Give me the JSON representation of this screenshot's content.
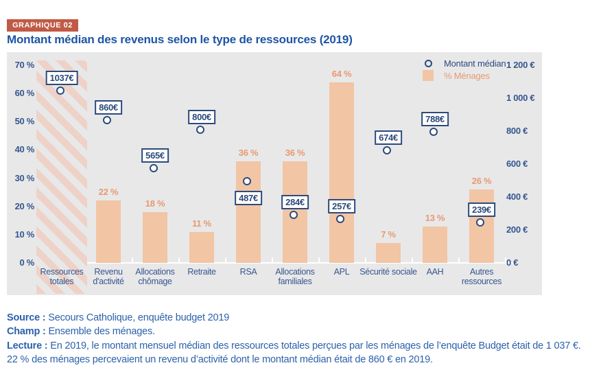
{
  "badge": "GRAPHIQUE 02",
  "title": "Montant médian des revenus selon le type de ressources (2019)",
  "legend": {
    "median_label": "Montant médian",
    "pct_label": "% Ménages"
  },
  "colors": {
    "accent_red": "#c05a45",
    "title_blue": "#1d55a4",
    "navy": "#2c4a7c",
    "orange_text": "#e8996e",
    "bar_fill": "#f2c5a4",
    "hatch_pink": "#eed2c7",
    "panel_gray": "#e8e8e9"
  },
  "chart_data": {
    "type": "bar",
    "title": "Montant médian des revenus selon le type de ressources (2019)",
    "grid": false,
    "legend_position": "top-right",
    "y_axis_left": {
      "unit": "%",
      "range": [
        0,
        70
      ],
      "ticks": [
        {
          "label": "70 %",
          "value": 70
        },
        {
          "label": "60 %",
          "value": 60
        },
        {
          "label": "50 %",
          "value": 50
        },
        {
          "label": "40 %",
          "value": 40
        },
        {
          "label": "30 %",
          "value": 30
        },
        {
          "label": "20 %",
          "value": 20
        },
        {
          "label": "10 %",
          "value": 10
        },
        {
          "label": "0 %",
          "value": 0
        }
      ]
    },
    "y_axis_right": {
      "unit": "€",
      "range": [
        0,
        1200
      ],
      "ticks": [
        {
          "label": "1 200 €",
          "value": 1200
        },
        {
          "label": "1 000 €",
          "value": 1000
        },
        {
          "label": "800 €",
          "value": 800
        },
        {
          "label": "600 €",
          "value": 600
        },
        {
          "label": "400 €",
          "value": 400
        },
        {
          "label": "200 €",
          "value": 200
        },
        {
          "label": "0 €",
          "value": 0
        }
      ]
    },
    "series": [
      {
        "name": "% Ménages",
        "type": "bar",
        "axis": "left"
      },
      {
        "name": "Montant médian",
        "type": "point",
        "axis": "right"
      }
    ],
    "categories": [
      {
        "label": "Ressources totales",
        "pct": null,
        "pct_label": null,
        "median": 1037,
        "median_label": "1037€",
        "hatched": true,
        "box_below": false
      },
      {
        "label": "Revenu d'activité",
        "pct": 22,
        "pct_label": "22 %",
        "median": 860,
        "median_label": "860€",
        "hatched": false,
        "box_below": false
      },
      {
        "label": "Allocations chômage",
        "pct": 18,
        "pct_label": "18 %",
        "median": 565,
        "median_label": "565€",
        "hatched": false,
        "box_below": false
      },
      {
        "label": "Retraite",
        "pct": 11,
        "pct_label": "11 %",
        "median": 800,
        "median_label": "800€",
        "hatched": false,
        "box_below": false
      },
      {
        "label": "RSA",
        "pct": 36,
        "pct_label": "36 %",
        "median": 487,
        "median_label": "487€",
        "hatched": false,
        "box_below": true
      },
      {
        "label": "Allocations familiales",
        "pct": 36,
        "pct_label": "36 %",
        "median": 284,
        "median_label": "284€",
        "hatched": false,
        "box_below": false
      },
      {
        "label": "APL",
        "pct": 64,
        "pct_label": "64 %",
        "median": 257,
        "median_label": "257€",
        "hatched": false,
        "box_below": false
      },
      {
        "label": "Sécurité sociale",
        "pct": 7,
        "pct_label": "7 %",
        "median": 674,
        "median_label": "674€",
        "hatched": false,
        "box_below": false
      },
      {
        "label": "AAH",
        "pct": 13,
        "pct_label": "13 %",
        "median": 788,
        "median_label": "788€",
        "hatched": false,
        "box_below": false
      },
      {
        "label": "Autres ressources",
        "pct": 26,
        "pct_label": "26 %",
        "median": 239,
        "median_label": "239€",
        "hatched": false,
        "box_below": false
      }
    ]
  },
  "footer": {
    "lines": [
      {
        "bold": "Source :",
        "text": " Secours Catholique, enquête budget 2019"
      },
      {
        "bold": "Champ :",
        "text": " Ensemble des ménages."
      },
      {
        "bold": "Lecture :",
        "text": " En 2019, le montant mensuel médian des ressources totales perçues par les ménages de l’enquête Budget était de 1 037 €."
      },
      {
        "bold": "",
        "text": "22 % des ménages percevaient un revenu d’activité dont le montant médian était de 860 € en 2019."
      }
    ]
  }
}
